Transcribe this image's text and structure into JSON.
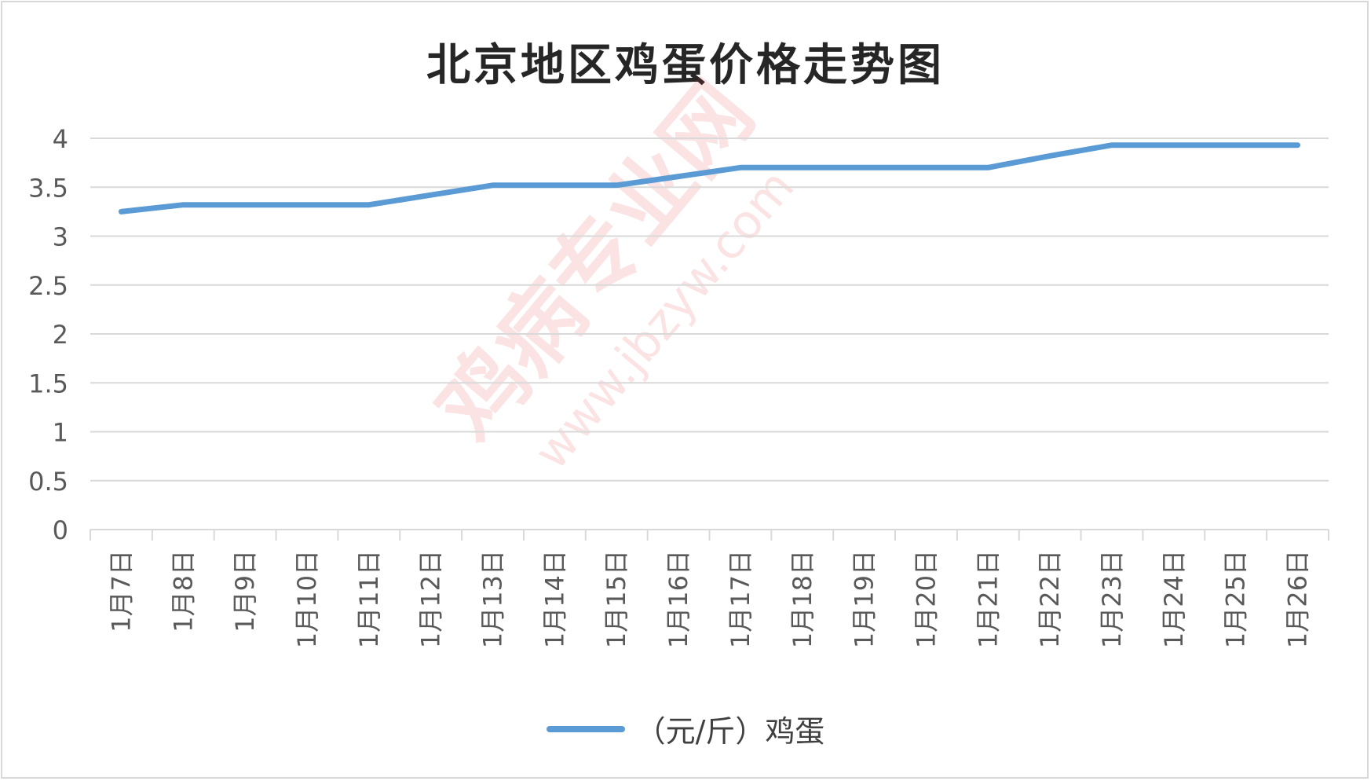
{
  "chart_data": {
    "type": "line",
    "title": "北京地区鸡蛋价格走势图",
    "categories": [
      "1月7日",
      "1月8日",
      "1月9日",
      "1月10日",
      "1月11日",
      "1月12日",
      "1月13日",
      "1月14日",
      "1月15日",
      "1月16日",
      "1月17日",
      "1月18日",
      "1月19日",
      "1月20日",
      "1月21日",
      "1月22日",
      "1月23日",
      "1月24日",
      "1月25日",
      "1月26日"
    ],
    "series": [
      {
        "name": "（元/斤）鸡蛋",
        "values": [
          3.25,
          3.32,
          3.32,
          3.32,
          3.32,
          3.42,
          3.52,
          3.52,
          3.52,
          3.61,
          3.7,
          3.7,
          3.7,
          3.7,
          3.7,
          3.82,
          3.93,
          3.93,
          3.93,
          3.93
        ],
        "color": "#5b9bd5"
      }
    ],
    "yticks": [
      "0",
      "0.5",
      "1",
      "1.5",
      "2",
      "2.5",
      "3",
      "3.5",
      "4"
    ],
    "ylim": [
      0,
      4
    ],
    "grid": true,
    "legend_position": "bottom"
  },
  "watermark": {
    "text": "鸡病专业网",
    "url": "www.jbzyw.com"
  }
}
